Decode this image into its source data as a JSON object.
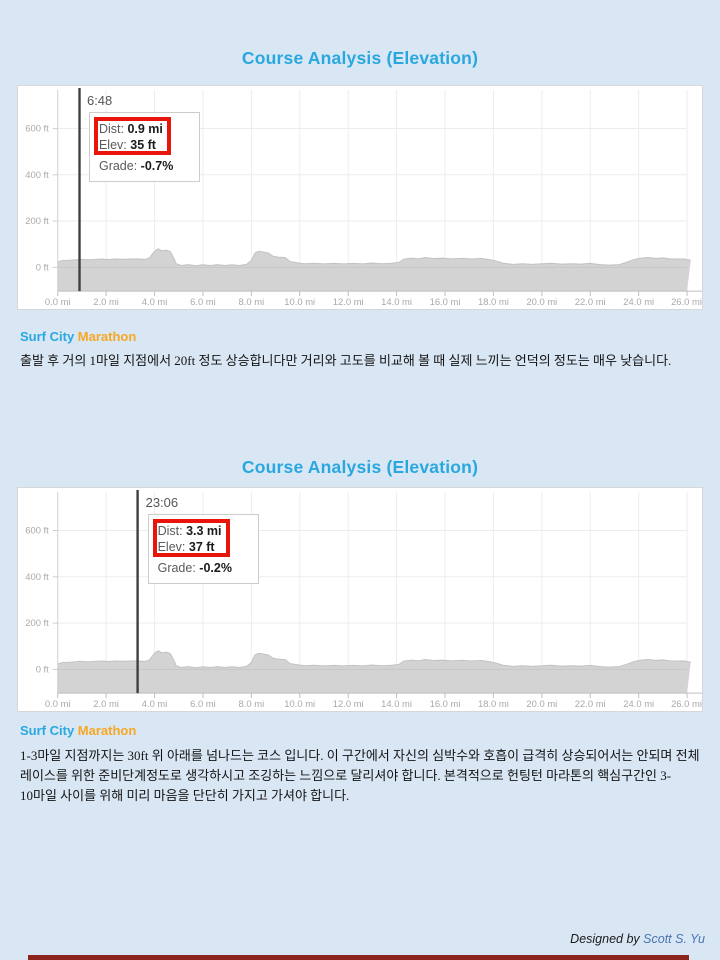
{
  "page": {
    "background_color": "#d9e6f3",
    "accent_blue": "#29a8e0",
    "accent_orange": "#f7a823",
    "annotation_red": "#e8150d"
  },
  "sections": [
    {
      "title": "Course Analysis (Elevation)",
      "race_name": {
        "part1": "Surf City",
        "part2": "Marathon"
      },
      "description": "출발 후 거의 1마일 지점에서 20ft 정도 상승합니다만 거리와 고도를 비교해 볼 때 실제 느끼는 언덕의 정도는 매우 낮습니다.",
      "tooltip": {
        "time": "6:48",
        "dist_label": "Dist:",
        "dist_value": "0.9 mi",
        "elev_label": "Elev:",
        "elev_value": "35 ft",
        "grade_label": "Grade:",
        "grade_value": "-0.7%",
        "cursor_mi": 0.9
      }
    },
    {
      "title": "Course Analysis (Elevation)",
      "race_name": {
        "part1": "Surf City",
        "part2": "Marathon"
      },
      "description": "1-3마일 지점까지는 30ft 위 아래를 넘나드는 코스 입니다. 이 구간에서 자신의 심박수와 호흡이 급격히 상승되어서는 안되며 전체 레이스를 위한 준비단계정도로 생각하시고 조깅하는 느낌으로 달리셔야 합니다. 본격적으로 헌팅턴 마라톤의 핵심구간인 3-10마일 사이를 위해 미리 마음을 단단히 가지고 가셔야 합니다.",
      "tooltip": {
        "time": "23:06",
        "dist_label": "Dist:",
        "dist_value": "3.3 mi",
        "elev_label": "Elev:",
        "elev_value": "37 ft",
        "grade_label": "Grade:",
        "grade_value": "-0.2%",
        "cursor_mi": 3.3
      }
    }
  ],
  "footer": {
    "prefix": "Designed by",
    "author": "Scott S. Yu"
  },
  "chart_data": {
    "type": "area",
    "title": "Course Analysis (Elevation)",
    "x_unit": "mi",
    "y_unit": "ft",
    "xlim": [
      0,
      26.2
    ],
    "ylim": [
      -100,
      750
    ],
    "grid": true,
    "legend": "none",
    "fill_color": "#d3d3d3",
    "line_color": "#c2c2c2",
    "x_tick_values": [
      0,
      2,
      4,
      6,
      8,
      10,
      12,
      14,
      16,
      18,
      20,
      22,
      24,
      26
    ],
    "x_tick_labels": [
      "0.0 mi",
      "2.0 mi",
      "4.0 mi",
      "6.0 mi",
      "8.0 mi",
      "10.0 mi",
      "12.0 mi",
      "14.0 mi",
      "16.0 mi",
      "18.0 mi",
      "20.0 mi",
      "22.0 mi",
      "24.0 mi",
      "26.0 mi"
    ],
    "y_tick_values": [
      600,
      400,
      200,
      0
    ],
    "y_tick_labels": [
      "600 ft",
      "400 ft",
      "200 ft",
      "0 ft"
    ],
    "series": [
      {
        "name": "elevation_ft",
        "x": [
          0,
          0.2,
          0.5,
          0.8,
          0.9,
          1.2,
          1.5,
          1.8,
          2.1,
          2.4,
          2.7,
          3,
          3.3,
          3.6,
          3.8,
          4,
          4.15,
          4.3,
          4.5,
          4.65,
          4.8,
          4.9,
          5.1,
          5.4,
          5.7,
          6,
          6.3,
          6.6,
          6.9,
          7.2,
          7.5,
          7.8,
          8,
          8.15,
          8.3,
          8.5,
          8.7,
          8.9,
          9.1,
          9.4,
          9.6,
          9.9,
          10.2,
          10.6,
          11,
          11.4,
          11.8,
          12.2,
          12.6,
          13,
          13.4,
          13.8,
          14.1,
          14.3,
          14.6,
          14.9,
          15.2,
          15.5,
          15.9,
          16.3,
          16.7,
          17.1,
          17.5,
          17.8,
          18.1,
          18.4,
          18.8,
          19.2,
          19.6,
          20,
          20.4,
          20.8,
          21.2,
          21.6,
          22,
          22.4,
          22.8,
          23.2,
          23.5,
          23.8,
          24.1,
          24.4,
          24.7,
          25,
          25.3,
          25.6,
          25.9,
          26.15
        ],
        "y": [
          24,
          30,
          31,
          33,
          35,
          33,
          34,
          36,
          34,
          36,
          35,
          36,
          37,
          34,
          42,
          70,
          80,
          72,
          74,
          68,
          40,
          15,
          8,
          12,
          7,
          11,
          8,
          12,
          8,
          11,
          8,
          13,
          30,
          62,
          70,
          66,
          62,
          48,
          44,
          42,
          25,
          20,
          16,
          18,
          15,
          17,
          15,
          17,
          15,
          19,
          16,
          18,
          22,
          36,
          40,
          37,
          43,
          38,
          40,
          37,
          39,
          36,
          38,
          34,
          28,
          18,
          13,
          16,
          13,
          16,
          18,
          14,
          16,
          14,
          17,
          12,
          10,
          12,
          22,
          34,
          40,
          43,
          39,
          41,
          37,
          36,
          36,
          31
        ]
      }
    ],
    "markers": [
      {
        "chart": 1,
        "time": "6:48",
        "dist_mi": 0.9,
        "elev_ft": 35,
        "grade_pct": -0.7
      },
      {
        "chart": 2,
        "time": "23:06",
        "dist_mi": 3.3,
        "elev_ft": 37,
        "grade_pct": -0.2
      }
    ]
  }
}
